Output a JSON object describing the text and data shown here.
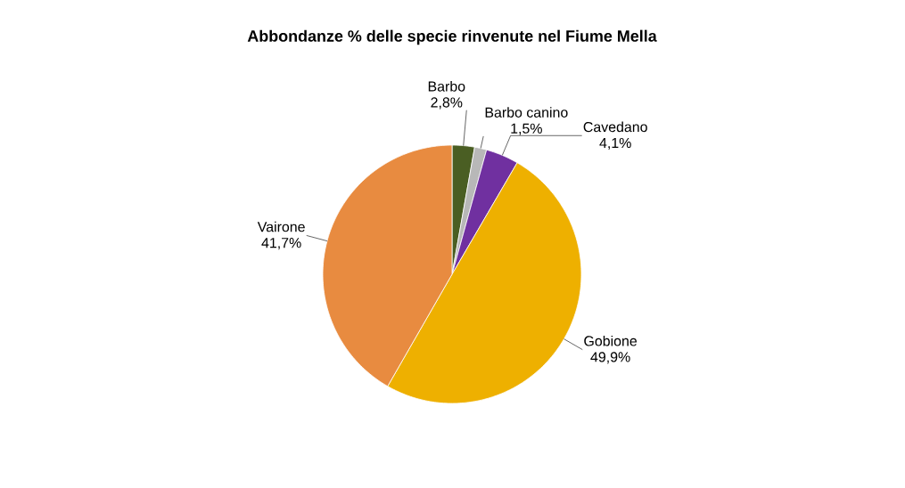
{
  "chart_data": {
    "type": "pie",
    "title": "Abbondanze % delle specie rinvenute nel Fiume Mella",
    "categories": [
      "Barbo",
      "Barbo canino",
      "Cavedano",
      "Gobione",
      "Vairone"
    ],
    "values": [
      2.8,
      1.5,
      4.1,
      49.9,
      41.7
    ],
    "value_labels": [
      "2,8%",
      "1,5%",
      "4,1%",
      "49,9%",
      "41,7%"
    ],
    "colors": [
      "#4a5e23",
      "#b8b8b8",
      "#7030a0",
      "#eeb000",
      "#e88b40"
    ],
    "legend": false
  }
}
